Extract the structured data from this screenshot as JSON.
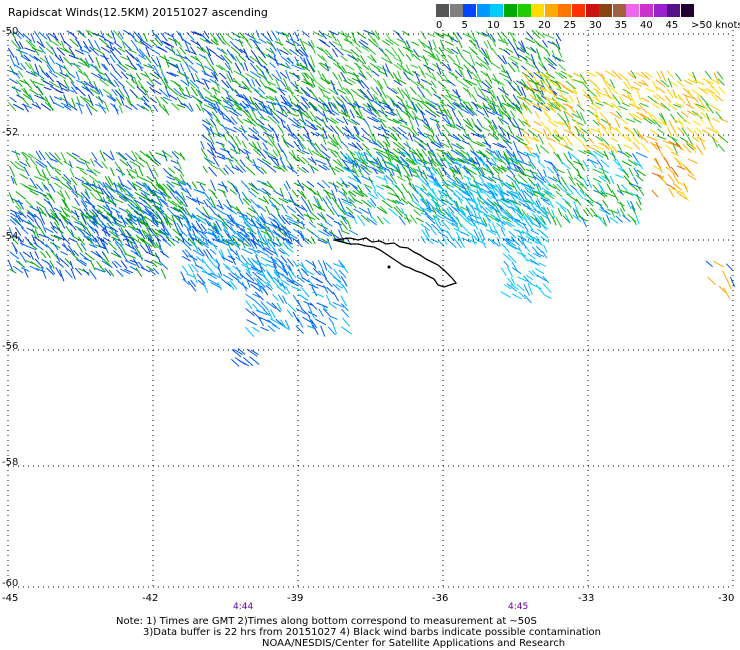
{
  "title": "Rapidscat Winds(12.5KM) 20151027 ascending",
  "scale": {
    "colors": [
      "#555555",
      "#808080",
      "#0044ff",
      "#0099ff",
      "#00ccff",
      "#00aa00",
      "#22cc00",
      "#ffdd00",
      "#ffaa00",
      "#ff7700",
      "#ff3300",
      "#cc1111",
      "#884411",
      "#a06040",
      "#ee66ee",
      "#cc33cc",
      "#9922cc",
      "#551188",
      "#220033"
    ],
    "labels": [
      "0",
      "5",
      "10",
      "15",
      "20",
      "25",
      "30",
      "35",
      "40",
      "45",
      ">50 knots"
    ]
  },
  "lon_labels": [
    "-45",
    "-42",
    "-39",
    "-36",
    "-33",
    "-30"
  ],
  "lat_labels": [
    "-50",
    "-52",
    "-54",
    "-56",
    "-58",
    "-60"
  ],
  "times": [
    "4:44",
    "4:45"
  ],
  "notes": [
    "Note: 1) Times are GMT 2)Times along bottom correspond to measurement at ~50S",
    "3)Data buffer is 22 hrs from 20151027 4) Black wind barbs indicate possible contamination",
    "NOAA/NESDIS/Center for Satellite Applications and Research"
  ]
}
